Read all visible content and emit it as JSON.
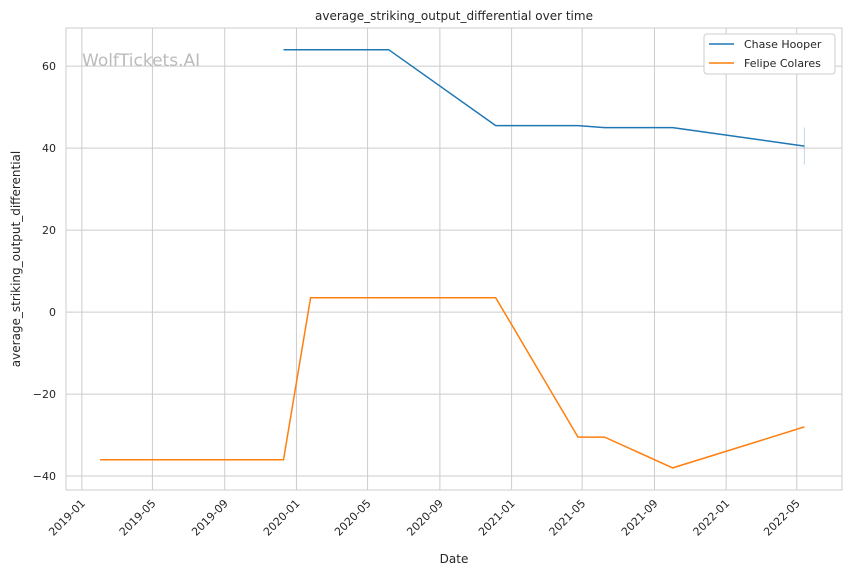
{
  "chart_data": {
    "type": "line",
    "title": "average_striking_output_differential over time",
    "xlabel": "Date",
    "ylabel": "average_striking_output_differential",
    "watermark": "WolfTickets.AI",
    "xlim": [
      "2018-12-05",
      "2022-07-17"
    ],
    "ylim": [
      -43.4,
      69.3
    ],
    "grid": true,
    "legend_position": "top-right",
    "x_ticks": [
      "2019-01",
      "2019-05",
      "2019-09",
      "2020-01",
      "2020-05",
      "2020-09",
      "2021-01",
      "2021-05",
      "2021-09",
      "2022-01",
      "2022-05"
    ],
    "y_ticks": [
      -40,
      -20,
      0,
      20,
      40,
      60
    ],
    "y_tick_labels": [
      "−40",
      "−20",
      "0",
      "20",
      "40",
      "60"
    ],
    "series": [
      {
        "name": "Chase Hooper",
        "color": "#1f77b4",
        "x": [
          "2019-12-10",
          "2020-06-06",
          "2020-12-05",
          "2021-04-24",
          "2021-06-08",
          "2021-10-02",
          "2022-05-14"
        ],
        "y": [
          64,
          64,
          45.5,
          45.5,
          45,
          45,
          40.5
        ],
        "error_bar": {
          "x": "2022-05-14",
          "low": 36,
          "high": 45
        }
      },
      {
        "name": "Felipe Colares",
        "color": "#ff7f0e",
        "x": [
          "2019-02-01",
          "2019-12-10",
          "2020-01-25",
          "2020-12-05",
          "2021-04-24",
          "2021-06-08",
          "2021-10-02",
          "2022-05-14"
        ],
        "y": [
          -36,
          -36,
          3.5,
          3.5,
          -30.5,
          -30.5,
          -38,
          -28
        ]
      }
    ]
  }
}
